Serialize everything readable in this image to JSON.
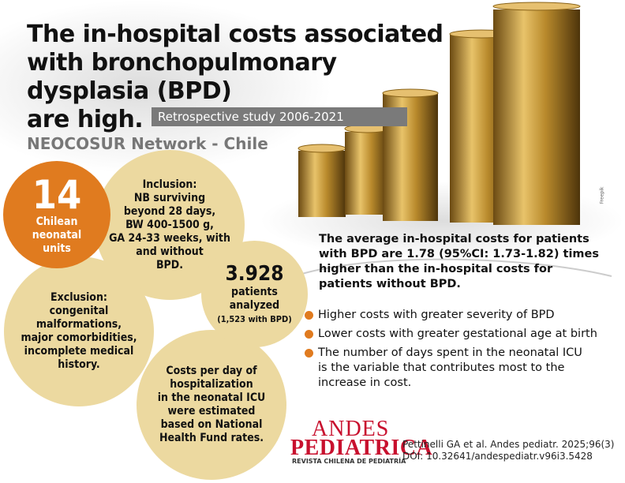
{
  "header": {
    "title_lines": [
      "The in-hospital costs associated",
      "with bronchopulmonary",
      "dysplasia (BPD)",
      "are high."
    ],
    "study": "Retrospective study 2006-2021",
    "network": "NEOCOSUR Network - Chile",
    "image_credit": "Freepik"
  },
  "units": {
    "number": "14",
    "lines": [
      "Chilean",
      "neonatal",
      "units"
    ]
  },
  "inclusion": {
    "heading": "Inclusion:",
    "lines": [
      "NB surviving",
      "beyond 28 days,",
      "BW 400-1500 g,",
      "GA 24-33 weeks, with",
      "and without",
      "BPD."
    ]
  },
  "patients": {
    "number": "3.928",
    "lines": [
      "patients",
      "analyzed"
    ],
    "note": "(1,523 with BPD)"
  },
  "exclusion": {
    "heading": "Exclusion:",
    "lines": [
      "congenital",
      "malformations,",
      "major comorbidities,",
      "incomplete medical",
      "history."
    ]
  },
  "costs": {
    "lines": [
      "Costs per day of",
      "hospitalization",
      "in the neonatal ICU",
      "were estimated",
      "based on National",
      "Health Fund rates."
    ]
  },
  "summary": "The average in-hospital costs for patients with BPD are 1.78 (95%CI: 1.73-1.82) times higher than the in-hospital costs for patients without BPD.",
  "bullets": [
    "Higher costs with greater severity of BPD",
    "Lower costs with greater gestational age at birth",
    "The number of days spent in the neonatal ICU is the variable that contributes most to the increase in cost."
  ],
  "footer": {
    "logo_top": "ANDES",
    "logo_bottom": "PEDIATRICA",
    "logo_sub": "REVISTA CHILENA DE PEDIATRÍA",
    "citation_lines": [
      "Pettinelli GA et al. Andes pediatr. 2025;96(3)",
      "DOI: 10.32641/andespediatr.v96i3.5428"
    ]
  }
}
